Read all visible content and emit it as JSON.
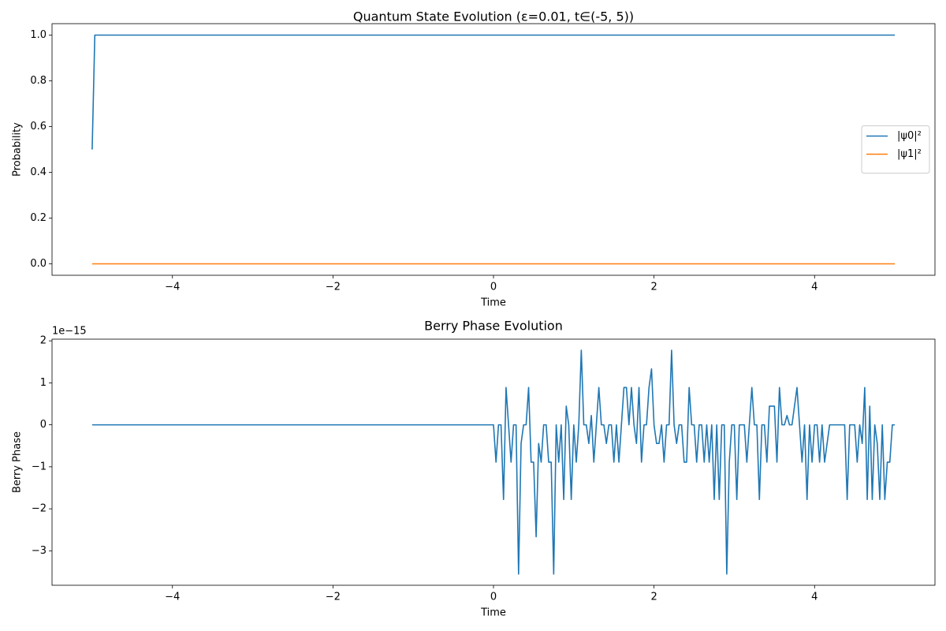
{
  "chart_data": [
    {
      "type": "line",
      "title": "Quantum State Evolution (ε=0.01, t∈(-5, 5))",
      "xlabel": "Time",
      "ylabel": "Probability",
      "x": [
        -5,
        -4.967,
        5
      ],
      "series": [
        {
          "name": "|ψ0|²",
          "color": "#1f77b4",
          "values": [
            0.5,
            1,
            1
          ]
        },
        {
          "name": "|ψ1|²",
          "color": "#ff7f0e",
          "values": [
            0,
            0,
            0
          ]
        }
      ],
      "xlim": [
        -5.5,
        5.5
      ],
      "xticks": [
        {
          "value": -4,
          "label": "−4"
        },
        {
          "value": -2,
          "label": "−2"
        },
        0,
        2,
        4
      ],
      "ylim": [
        -0.05,
        1.05
      ],
      "yticks": [
        {
          "value": 0,
          "label": "0.0"
        },
        {
          "value": 0.2,
          "label": "0.2"
        },
        {
          "value": 0.4,
          "label": "0.4"
        },
        {
          "value": 0.6,
          "label": "0.6"
        },
        {
          "value": 0.8,
          "label": "0.8"
        },
        {
          "value": 1,
          "label": "1.0"
        }
      ],
      "legend": "center right"
    },
    {
      "type": "line",
      "title": "Berry Phase Evolution",
      "xlabel": "Time",
      "ylabel": "Berry Phase",
      "offset_label": "1e−15",
      "x": [
        -5,
        0,
        0.03125,
        0.0625,
        0.09375,
        0.125,
        0.15625,
        0.1875,
        0.21875,
        0.25,
        0.28125,
        0.3125,
        0.34375,
        0.375,
        0.40625,
        0.4375,
        0.46875,
        0.5,
        0.53125,
        0.5625,
        0.59375,
        0.625,
        0.65625,
        0.6875,
        0.71875,
        0.75,
        0.78125,
        0.8125,
        0.84375,
        0.875,
        0.90625,
        0.9375,
        0.96875,
        1,
        1.03125,
        1.0625,
        1.09375,
        1.125,
        1.15625,
        1.1875,
        1.21875,
        1.25,
        1.28125,
        1.3125,
        1.34375,
        1.375,
        1.40625,
        1.4375,
        1.46875,
        1.5,
        1.53125,
        1.5625,
        1.59375,
        1.625,
        1.65625,
        1.6875,
        1.71875,
        1.75,
        1.78125,
        1.8125,
        1.84375,
        1.875,
        1.90625,
        1.9375,
        1.96875,
        2,
        2.03125,
        2.0625,
        2.09375,
        2.125,
        2.15625,
        2.1875,
        2.21875,
        2.25,
        2.28125,
        2.3125,
        2.34375,
        2.375,
        2.40625,
        2.4375,
        2.46875,
        2.5,
        2.53125,
        2.5625,
        2.59375,
        2.625,
        2.65625,
        2.6875,
        2.71875,
        2.75,
        2.78125,
        2.8125,
        2.84375,
        2.875,
        2.90625,
        2.9375,
        2.96875,
        3,
        3.03125,
        3.0625,
        3.09375,
        3.125,
        3.15625,
        3.1875,
        3.21875,
        3.25,
        3.28125,
        3.3125,
        3.34375,
        3.375,
        3.40625,
        3.4375,
        3.46875,
        3.5,
        3.53125,
        3.5625,
        3.59375,
        3.625,
        3.65625,
        3.6875,
        3.71875,
        3.75,
        3.78125,
        3.8125,
        3.84375,
        3.875,
        3.90625,
        3.9375,
        3.96875,
        4,
        4.03125,
        4.0625,
        4.09375,
        4.125,
        4.15625,
        4.1875,
        4.21875,
        4.25,
        4.28125,
        4.3125,
        4.34375,
        4.375,
        4.40625,
        4.4375,
        4.46875,
        4.5,
        4.53125,
        4.5625,
        4.59375,
        4.625,
        4.65625,
        4.6875,
        4.71875,
        4.75,
        4.78125,
        4.8125,
        4.84375,
        4.875,
        4.90625,
        4.9375,
        4.96875,
        5
      ],
      "series": [
        {
          "color": "#1f77b4",
          "values": [
            0,
            0,
            -0.888,
            0,
            0,
            -1.776,
            0.888,
            0,
            -0.888,
            0,
            0,
            -3.553,
            -0.444,
            0,
            0,
            0.888,
            -0.888,
            -0.888,
            -2.665,
            -0.444,
            -0.888,
            0,
            0,
            -0.888,
            -0.888,
            -3.553,
            0,
            -0.888,
            0,
            -1.776,
            0.444,
            0,
            -1.776,
            0,
            -0.888,
            0,
            1.776,
            0,
            0,
            -0.444,
            0.222,
            -0.888,
            0,
            0.888,
            0,
            0,
            -0.444,
            0,
            0,
            -0.888,
            0,
            -0.888,
            0,
            0.888,
            0.888,
            0,
            0.888,
            0,
            -0.444,
            0.888,
            -0.888,
            0,
            0,
            0.888,
            1.332,
            0,
            -0.444,
            -0.444,
            0,
            -0.888,
            0,
            0,
            1.776,
            0,
            -0.444,
            0,
            0,
            -0.888,
            -0.888,
            0.888,
            0,
            0,
            -0.888,
            0,
            0,
            -0.888,
            0,
            -0.888,
            0,
            -1.776,
            0,
            -1.776,
            0,
            0,
            -3.553,
            -0.888,
            0,
            0,
            -1.776,
            0,
            0,
            0,
            -0.888,
            0,
            0.888,
            0,
            0,
            -1.776,
            0,
            0,
            -0.888,
            0.444,
            0.444,
            0.444,
            -0.888,
            0.888,
            0,
            0,
            0.222,
            0,
            0,
            0.444,
            0.888,
            0,
            -0.888,
            0,
            -1.776,
            0,
            -0.888,
            0,
            0,
            -0.888,
            0,
            -0.888,
            -0.444,
            0,
            0,
            0,
            0,
            0,
            0,
            0,
            -1.776,
            0,
            0,
            0,
            -0.888,
            0,
            -0.444,
            0.888,
            -1.776,
            0.444,
            -1.776,
            0,
            -0.444,
            -1.776,
            0,
            -1.776,
            -0.888,
            -0.888,
            0,
            0
          ]
        }
      ],
      "xlim": [
        -5.5,
        5.5
      ],
      "xticks": [
        {
          "value": -4,
          "label": "−4"
        },
        {
          "value": -2,
          "label": "−2"
        },
        0,
        2,
        4
      ],
      "ylim": [
        -3.82,
        2.04
      ],
      "yticks": [
        {
          "value": -3,
          "label": "−3"
        },
        {
          "value": -2,
          "label": "−2"
        },
        {
          "value": -1,
          "label": "−1"
        },
        0,
        1,
        2
      ]
    }
  ]
}
